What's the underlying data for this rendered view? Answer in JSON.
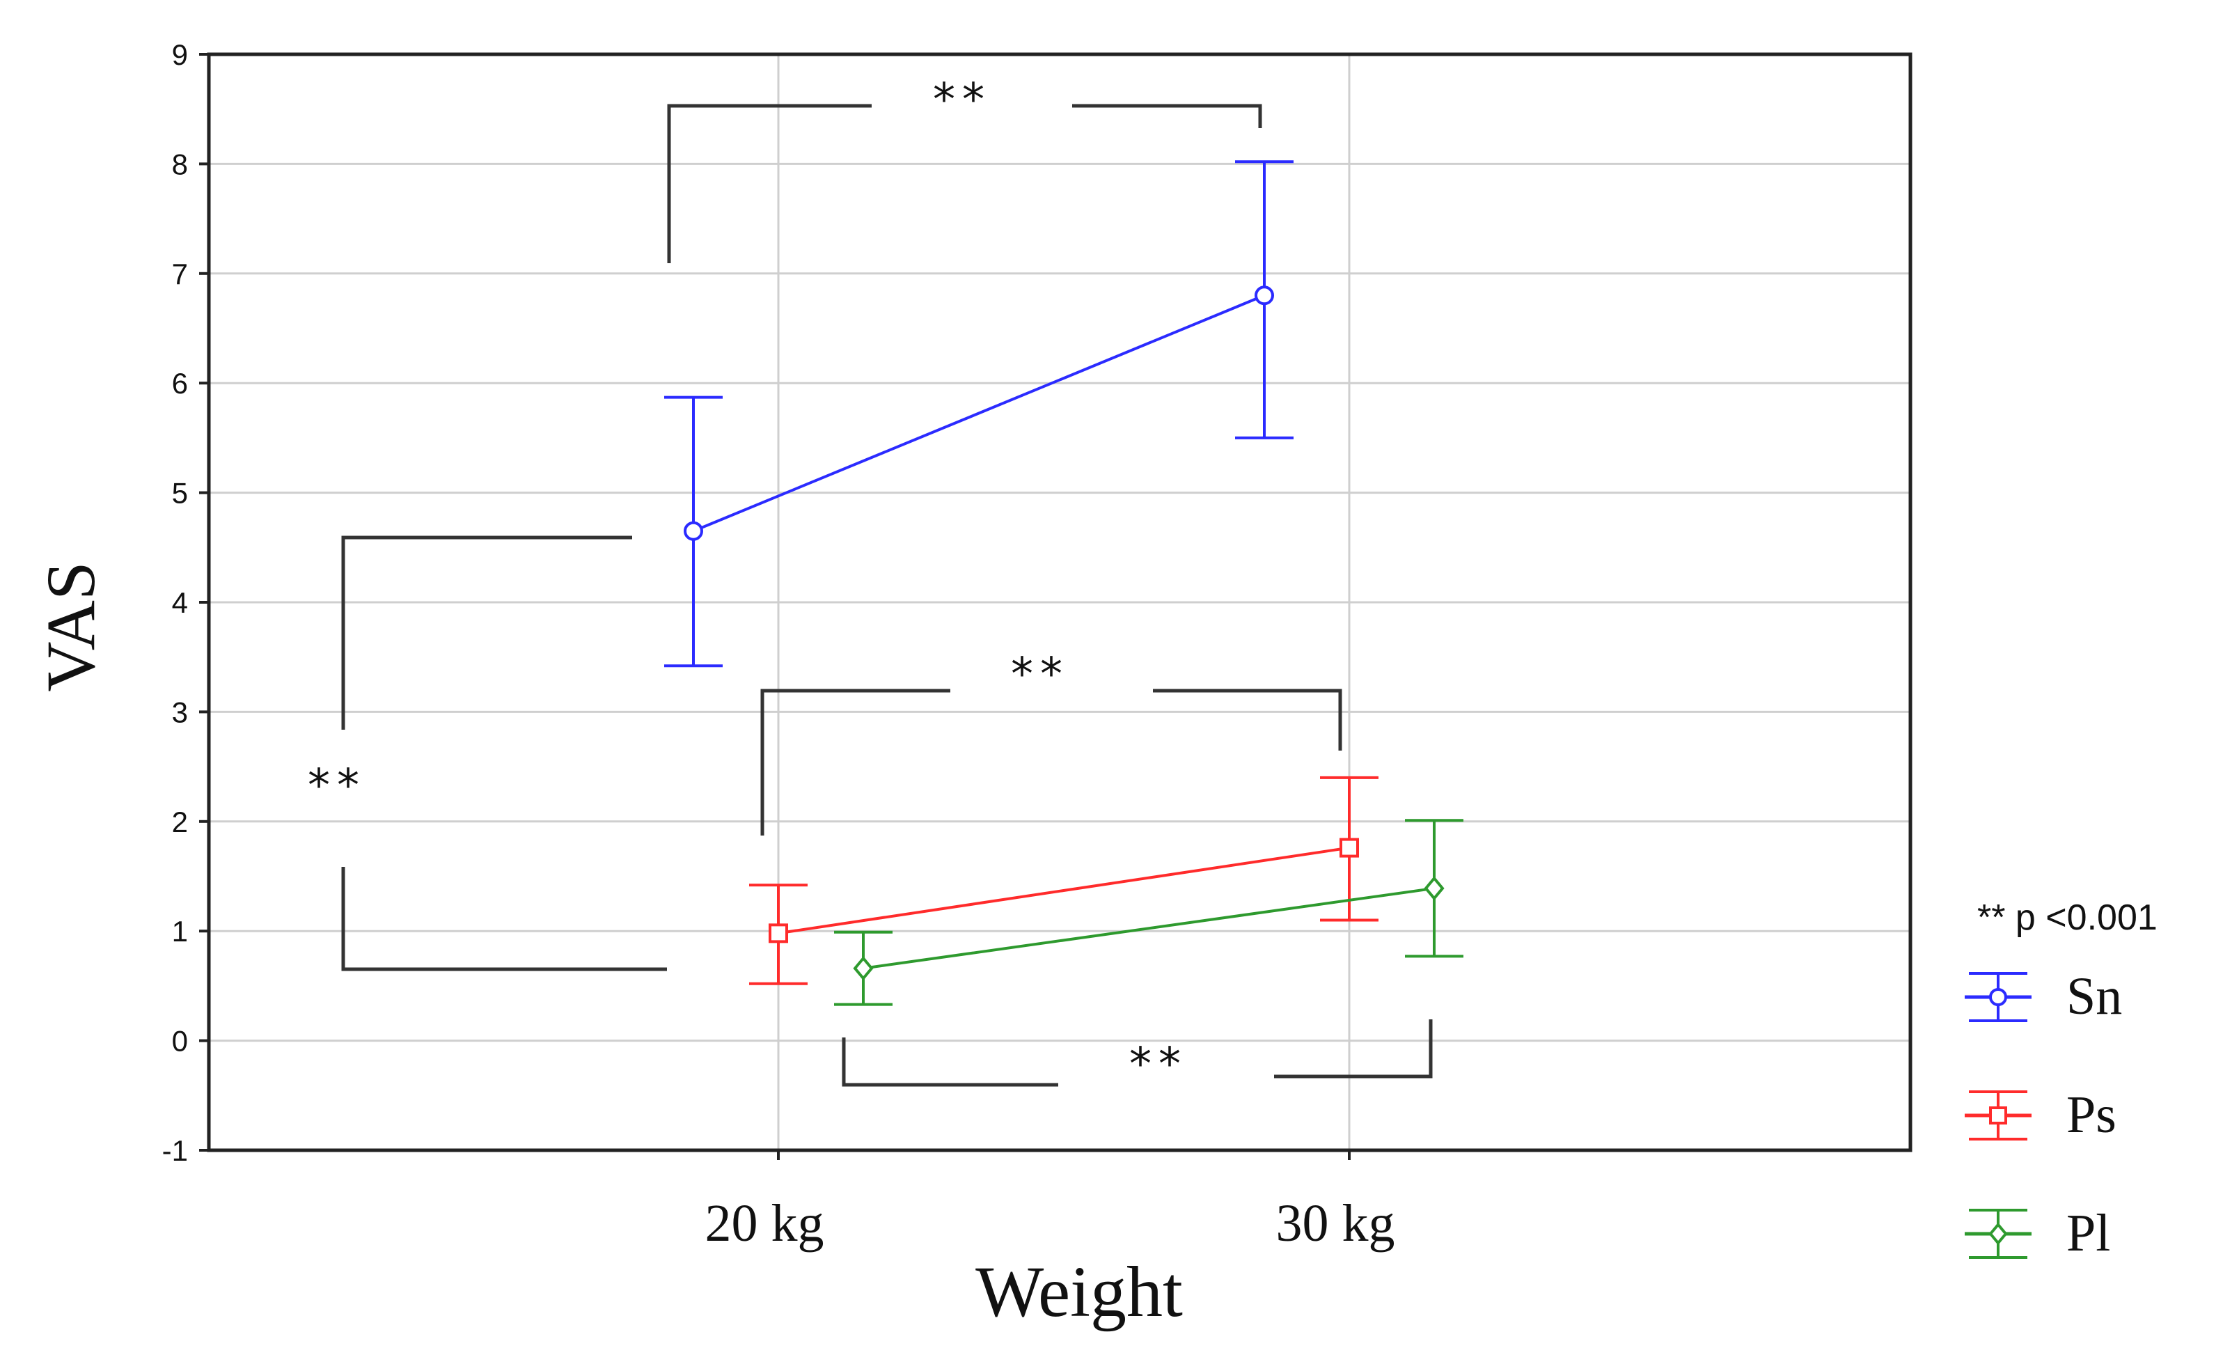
{
  "chart_data": {
    "type": "line",
    "title": "",
    "xlabel": "Weight",
    "ylabel": "VAS",
    "categories": [
      "20 kg",
      "30 kg"
    ],
    "ylim": [
      -1,
      9
    ],
    "yticks": [
      -1,
      0,
      1,
      2,
      3,
      4,
      5,
      6,
      7,
      8,
      9
    ],
    "grid": true,
    "legend_position": "right",
    "series": [
      {
        "name": "Sn",
        "color": "#2b2bff",
        "marker": "circle",
        "offset": -0.15,
        "values": [
          4.65,
          6.8
        ],
        "lower": [
          3.42,
          5.5
        ],
        "upper": [
          5.87,
          8.02
        ]
      },
      {
        "name": "Ps",
        "color": "#ff2b2b",
        "marker": "square",
        "offset": 0.0,
        "values": [
          0.98,
          1.76
        ],
        "lower": [
          0.52,
          1.1
        ],
        "upper": [
          1.42,
          2.4
        ]
      },
      {
        "name": "Pl",
        "color": "#2e9a2e",
        "marker": "diamond",
        "offset": 0.15,
        "values": [
          0.66,
          1.39
        ],
        "lower": [
          0.33,
          0.77
        ],
        "upper": [
          0.99,
          2.01
        ]
      }
    ],
    "significance_note": "** p <0.001",
    "significance_marks": [
      "**",
      "**",
      "**",
      "**"
    ]
  }
}
